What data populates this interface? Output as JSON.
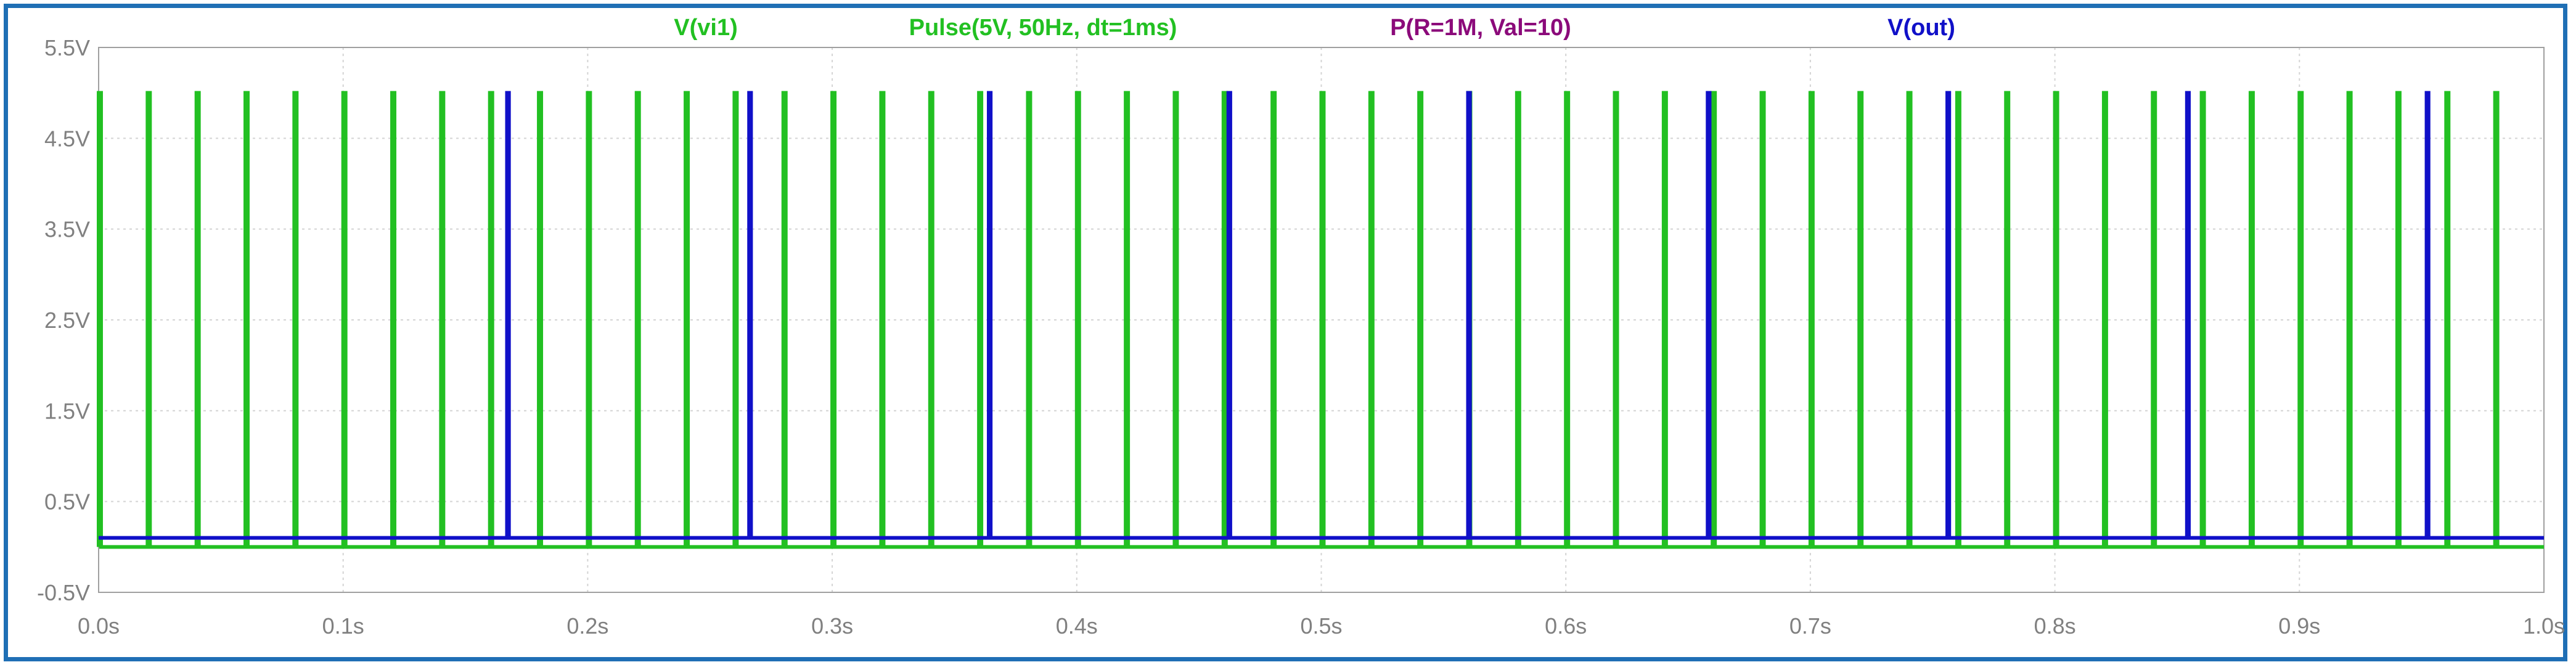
{
  "chart_data": {
    "type": "line",
    "title": "",
    "legend": [
      {
        "label": "V(vi1)",
        "color": "#22c022"
      },
      {
        "label": "Pulse(5V, 50Hz, dt=1ms)",
        "color": "#22c022"
      },
      {
        "label": "P(R=1M, Val=10)",
        "color": "#8b0a7a"
      },
      {
        "label": "V(out)",
        "color": "#1010c8"
      }
    ],
    "xlim": [
      0,
      1.0
    ],
    "ylim": [
      -0.5,
      5.5
    ],
    "x_tick_labels": [
      "0.0s",
      "0.1s",
      "0.2s",
      "0.3s",
      "0.4s",
      "0.5s",
      "0.6s",
      "0.7s",
      "0.8s",
      "0.9s",
      "1.0s"
    ],
    "x_tick_values": [
      0.0,
      0.1,
      0.2,
      0.3,
      0.4,
      0.5,
      0.6,
      0.7,
      0.8,
      0.9,
      1.0
    ],
    "y_tick_labels": [
      "5.5V",
      "4.5V",
      "3.5V",
      "2.5V",
      "1.5V",
      "0.5V",
      "-0.5V"
    ],
    "y_tick_values": [
      5.5,
      4.5,
      3.5,
      2.5,
      1.5,
      0.5,
      -0.5
    ],
    "grid": true,
    "series": [
      {
        "name": "V(vi1)",
        "color": "#22c022",
        "kind": "pulse",
        "low": 0.0,
        "high": 5.0,
        "width": 0.001,
        "starts": [
          0.0,
          0.02,
          0.04,
          0.06,
          0.08,
          0.1,
          0.12,
          0.14,
          0.16,
          0.18,
          0.2,
          0.22,
          0.24,
          0.26,
          0.28,
          0.3,
          0.32,
          0.34,
          0.36,
          0.38,
          0.4,
          0.42,
          0.44,
          0.46,
          0.48,
          0.5,
          0.52,
          0.54,
          0.56,
          0.58,
          0.6,
          0.62,
          0.64,
          0.66,
          0.68,
          0.7,
          0.72,
          0.74,
          0.76,
          0.78,
          0.8,
          0.82,
          0.84,
          0.86,
          0.88,
          0.9,
          0.92,
          0.94,
          0.96,
          0.98
        ]
      },
      {
        "name": "V(out)",
        "color": "#1010c8",
        "kind": "pulse",
        "low": 0.1,
        "high": 5.0,
        "width": 0.0008,
        "starts": [
          0.167,
          0.266,
          0.364,
          0.462,
          0.56,
          0.658,
          0.756,
          0.854,
          0.952
        ]
      }
    ]
  }
}
